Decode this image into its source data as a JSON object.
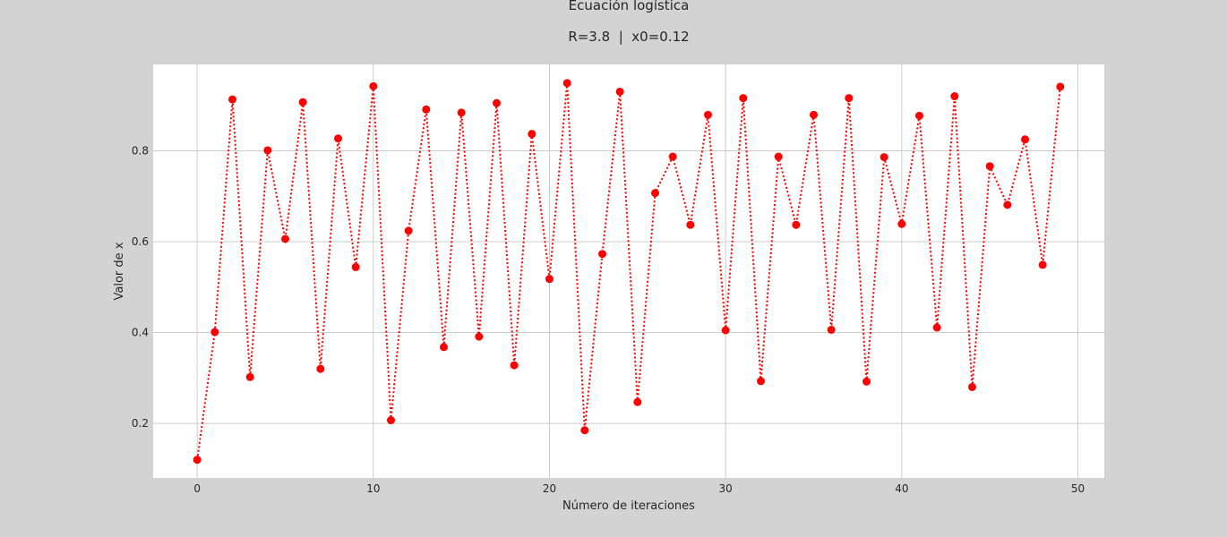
{
  "chart_data": {
    "type": "line",
    "title": "Ecuación logística",
    "subtitle": "R=3.8  |  x0=0.12",
    "xlabel": "Número de iteraciones",
    "ylabel": "Valor de x",
    "xlim": [
      -2.5,
      51.5
    ],
    "ylim": [
      0.08,
      0.99
    ],
    "xticks": [
      0,
      10,
      20,
      30,
      40,
      50
    ],
    "yticks": [
      0.2,
      0.4,
      0.6,
      0.8
    ],
    "grid": true,
    "line_style": "dotted",
    "marker": "circle",
    "series": [
      {
        "color": "#ff0000",
        "x": [
          0,
          1,
          2,
          3,
          4,
          5,
          6,
          7,
          8,
          9,
          10,
          11,
          12,
          13,
          14,
          15,
          16,
          17,
          18,
          19,
          20,
          21,
          22,
          23,
          24,
          25,
          26,
          27,
          28,
          29,
          30,
          31,
          32,
          33,
          34,
          35,
          36,
          37,
          38,
          39,
          40,
          41,
          42,
          43,
          44,
          45,
          46,
          47,
          48,
          49
        ],
        "y": [
          0.12,
          0.401,
          0.913,
          0.302,
          0.801,
          0.606,
          0.907,
          0.32,
          0.827,
          0.544,
          0.942,
          0.207,
          0.624,
          0.891,
          0.368,
          0.884,
          0.391,
          0.905,
          0.328,
          0.837,
          0.518,
          0.949,
          0.185,
          0.573,
          0.93,
          0.247,
          0.707,
          0.787,
          0.637,
          0.879,
          0.405,
          0.916,
          0.293,
          0.787,
          0.637,
          0.879,
          0.406,
          0.916,
          0.292,
          0.786,
          0.639,
          0.877,
          0.411,
          0.92,
          0.28,
          0.766,
          0.681,
          0.825,
          0.549,
          0.941
        ]
      }
    ],
    "background_color": "#d3d3d3",
    "plot_background_color": "#ffffff",
    "grid_color": "#cccccc"
  }
}
